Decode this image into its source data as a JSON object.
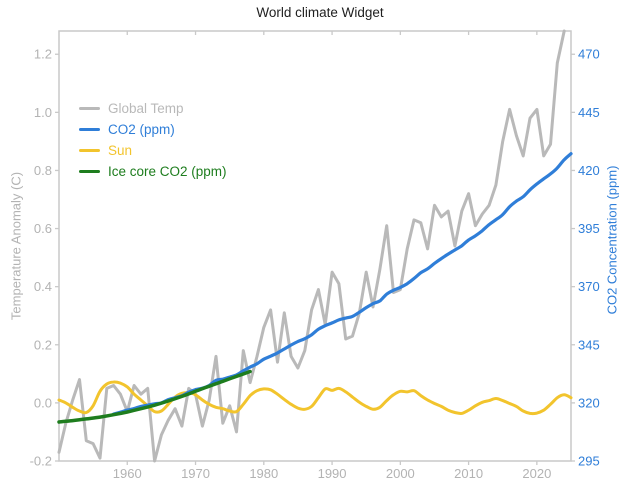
{
  "title": "World climate Widget",
  "colors": {
    "global_temp": "#b9b9b9",
    "co2": "#2f7ed8",
    "sun": "#f2c42d",
    "ice_core": "#1e7d1e",
    "axis_line": "#c9c9c9",
    "tick_label_gray": "#b3b3b3",
    "tick_label_blue": "#2f7ed8",
    "title_text": "#1f1f1f"
  },
  "legend": {
    "items": [
      {
        "label": "Global Temp",
        "color": "#b9b9b9",
        "series": "Global Temp"
      },
      {
        "label": "CO2 (ppm)",
        "color": "#2f7ed8",
        "series": "CO2 (ppm)"
      },
      {
        "label": "Sun",
        "color": "#f2c42d",
        "series": "Sun"
      },
      {
        "label": "Ice core CO2 (ppm)",
        "color": "#1e7d1e",
        "series": "Ice core CO2 (ppm)"
      }
    ]
  },
  "axes": {
    "x": {
      "ticks": [
        1960,
        1970,
        1980,
        1990,
        2000,
        2010,
        2020
      ]
    },
    "y_left": {
      "title": "Temperature Anomaly (C)",
      "ticks": [
        -0.2,
        0.0,
        0.2,
        0.4,
        0.6,
        0.8,
        1.0,
        1.2
      ]
    },
    "y_right": {
      "title": "CO2 Concentration (ppm)",
      "ticks": [
        295,
        320,
        345,
        370,
        395,
        420,
        445,
        470
      ]
    }
  },
  "chart_data": {
    "type": "line",
    "title": "World climate Widget",
    "xlabel": "",
    "ylabel_left": "Temperature Anomaly (C)",
    "ylabel_right": "CO2 Concentration (ppm)",
    "xlim": [
      1950,
      2025
    ],
    "ylim_left": [
      -0.2,
      1.28
    ],
    "ylim_right": [
      295,
      480
    ],
    "right_axis_mapping": "ppm = 320 + 125 * degC",
    "grid": false,
    "legend_position": "top-left-inside",
    "series": [
      {
        "name": "Global Temp",
        "color": "#b9b9b9",
        "axis": "left",
        "unit": "degC",
        "smooth": false,
        "width": 3,
        "points": [
          [
            1950,
            -0.17
          ],
          [
            1951,
            -0.07
          ],
          [
            1952,
            0.01
          ],
          [
            1953,
            0.08
          ],
          [
            1954,
            -0.13
          ],
          [
            1955,
            -0.14
          ],
          [
            1956,
            -0.19
          ],
          [
            1957,
            0.05
          ],
          [
            1958,
            0.06
          ],
          [
            1959,
            0.03
          ],
          [
            1960,
            -0.03
          ],
          [
            1961,
            0.06
          ],
          [
            1962,
            0.03
          ],
          [
            1963,
            0.05
          ],
          [
            1964,
            -0.2
          ],
          [
            1965,
            -0.11
          ],
          [
            1966,
            -0.06
          ],
          [
            1967,
            -0.02
          ],
          [
            1968,
            -0.08
          ],
          [
            1969,
            0.05
          ],
          [
            1970,
            0.03
          ],
          [
            1971,
            -0.08
          ],
          [
            1972,
            0.01
          ],
          [
            1973,
            0.16
          ],
          [
            1974,
            -0.07
          ],
          [
            1975,
            -0.01
          ],
          [
            1976,
            -0.1
          ],
          [
            1977,
            0.18
          ],
          [
            1978,
            0.07
          ],
          [
            1979,
            0.16
          ],
          [
            1980,
            0.26
          ],
          [
            1981,
            0.32
          ],
          [
            1982,
            0.14
          ],
          [
            1983,
            0.31
          ],
          [
            1984,
            0.16
          ],
          [
            1985,
            0.12
          ],
          [
            1986,
            0.18
          ],
          [
            1987,
            0.32
          ],
          [
            1988,
            0.39
          ],
          [
            1989,
            0.27
          ],
          [
            1990,
            0.45
          ],
          [
            1991,
            0.41
          ],
          [
            1992,
            0.22
          ],
          [
            1993,
            0.23
          ],
          [
            1994,
            0.31
          ],
          [
            1995,
            0.45
          ],
          [
            1996,
            0.33
          ],
          [
            1997,
            0.46
          ],
          [
            1998,
            0.61
          ],
          [
            1999,
            0.38
          ],
          [
            2000,
            0.39
          ],
          [
            2001,
            0.53
          ],
          [
            2002,
            0.63
          ],
          [
            2003,
            0.62
          ],
          [
            2004,
            0.53
          ],
          [
            2005,
            0.68
          ],
          [
            2006,
            0.64
          ],
          [
            2007,
            0.66
          ],
          [
            2008,
            0.54
          ],
          [
            2009,
            0.66
          ],
          [
            2010,
            0.72
          ],
          [
            2011,
            0.61
          ],
          [
            2012,
            0.65
          ],
          [
            2013,
            0.68
          ],
          [
            2014,
            0.75
          ],
          [
            2015,
            0.9
          ],
          [
            2016,
            1.01
          ],
          [
            2017,
            0.92
          ],
          [
            2018,
            0.85
          ],
          [
            2019,
            0.98
          ],
          [
            2020,
            1.01
          ],
          [
            2021,
            0.85
          ],
          [
            2022,
            0.89
          ],
          [
            2023,
            1.17
          ],
          [
            2024,
            1.28
          ]
        ]
      },
      {
        "name": "Sun",
        "color": "#f2c42d",
        "axis": "left",
        "unit": "degC",
        "smooth": true,
        "width": 3,
        "points": [
          [
            1950,
            0.01
          ],
          [
            1951,
            0.0
          ],
          [
            1952,
            -0.015
          ],
          [
            1953,
            -0.028
          ],
          [
            1954,
            -0.033
          ],
          [
            1955,
            -0.01
          ],
          [
            1956,
            0.04
          ],
          [
            1957,
            0.065
          ],
          [
            1958,
            0.072
          ],
          [
            1959,
            0.068
          ],
          [
            1960,
            0.055
          ],
          [
            1961,
            0.03
          ],
          [
            1962,
            0.01
          ],
          [
            1963,
            -0.01
          ],
          [
            1964,
            -0.03
          ],
          [
            1965,
            -0.028
          ],
          [
            1966,
            -0.005
          ],
          [
            1967,
            0.02
          ],
          [
            1968,
            0.033
          ],
          [
            1969,
            0.035
          ],
          [
            1970,
            0.028
          ],
          [
            1971,
            0.01
          ],
          [
            1972,
            -0.005
          ],
          [
            1973,
            -0.015
          ],
          [
            1974,
            -0.02
          ],
          [
            1975,
            -0.028
          ],
          [
            1976,
            -0.03
          ],
          [
            1977,
            -0.005
          ],
          [
            1978,
            0.025
          ],
          [
            1979,
            0.042
          ],
          [
            1980,
            0.048
          ],
          [
            1981,
            0.045
          ],
          [
            1982,
            0.03
          ],
          [
            1983,
            0.012
          ],
          [
            1984,
            -0.005
          ],
          [
            1985,
            -0.018
          ],
          [
            1986,
            -0.022
          ],
          [
            1987,
            -0.012
          ],
          [
            1988,
            0.018
          ],
          [
            1989,
            0.048
          ],
          [
            1990,
            0.043
          ],
          [
            1991,
            0.05
          ],
          [
            1992,
            0.038
          ],
          [
            1993,
            0.02
          ],
          [
            1994,
            0.002
          ],
          [
            1995,
            -0.012
          ],
          [
            1996,
            -0.022
          ],
          [
            1997,
            -0.015
          ],
          [
            1998,
            0.008
          ],
          [
            1999,
            0.028
          ],
          [
            2000,
            0.04
          ],
          [
            2001,
            0.038
          ],
          [
            2002,
            0.042
          ],
          [
            2003,
            0.025
          ],
          [
            2004,
            0.01
          ],
          [
            2005,
            -0.002
          ],
          [
            2006,
            -0.012
          ],
          [
            2007,
            -0.025
          ],
          [
            2008,
            -0.033
          ],
          [
            2009,
            -0.036
          ],
          [
            2010,
            -0.025
          ],
          [
            2011,
            -0.01
          ],
          [
            2012,
            0.002
          ],
          [
            2013,
            0.008
          ],
          [
            2014,
            0.015
          ],
          [
            2015,
            0.008
          ],
          [
            2016,
            -0.002
          ],
          [
            2017,
            -0.012
          ],
          [
            2018,
            -0.028
          ],
          [
            2019,
            -0.036
          ],
          [
            2020,
            -0.035
          ],
          [
            2021,
            -0.025
          ],
          [
            2022,
            -0.005
          ],
          [
            2023,
            0.018
          ],
          [
            2024,
            0.028
          ],
          [
            2025,
            0.018
          ]
        ]
      },
      {
        "name": "CO2 (ppm)",
        "color": "#2f7ed8",
        "axis": "right",
        "unit": "ppm",
        "smooth": true,
        "width": 3.2,
        "points": [
          [
            1958,
            315.2
          ],
          [
            1959,
            316.0
          ],
          [
            1960,
            316.9
          ],
          [
            1961,
            317.6
          ],
          [
            1962,
            318.5
          ],
          [
            1963,
            319.0
          ],
          [
            1964,
            319.6
          ],
          [
            1965,
            320.0
          ],
          [
            1966,
            321.4
          ],
          [
            1967,
            322.2
          ],
          [
            1968,
            323.1
          ],
          [
            1969,
            324.6
          ],
          [
            1970,
            325.7
          ],
          [
            1971,
            326.3
          ],
          [
            1972,
            327.5
          ],
          [
            1973,
            329.7
          ],
          [
            1974,
            330.2
          ],
          [
            1975,
            331.1
          ],
          [
            1976,
            332.0
          ],
          [
            1977,
            333.8
          ],
          [
            1978,
            335.4
          ],
          [
            1979,
            336.8
          ],
          [
            1980,
            338.8
          ],
          [
            1981,
            340.1
          ],
          [
            1982,
            341.5
          ],
          [
            1983,
            343.2
          ],
          [
            1984,
            344.9
          ],
          [
            1985,
            346.4
          ],
          [
            1986,
            347.6
          ],
          [
            1987,
            349.3
          ],
          [
            1988,
            351.7
          ],
          [
            1989,
            353.2
          ],
          [
            1990,
            354.4
          ],
          [
            1991,
            355.7
          ],
          [
            1992,
            356.5
          ],
          [
            1993,
            357.2
          ],
          [
            1994,
            359.0
          ],
          [
            1995,
            361.0
          ],
          [
            1996,
            362.7
          ],
          [
            1997,
            363.9
          ],
          [
            1998,
            366.8
          ],
          [
            1999,
            368.5
          ],
          [
            2000,
            369.7
          ],
          [
            2001,
            371.3
          ],
          [
            2002,
            373.5
          ],
          [
            2003,
            376.0
          ],
          [
            2004,
            377.7
          ],
          [
            2005,
            380.0
          ],
          [
            2006,
            382.1
          ],
          [
            2007,
            384.0
          ],
          [
            2008,
            385.8
          ],
          [
            2009,
            387.6
          ],
          [
            2010,
            390.1
          ],
          [
            2011,
            391.9
          ],
          [
            2012,
            394.1
          ],
          [
            2013,
            396.7
          ],
          [
            2014,
            398.8
          ],
          [
            2015,
            401.0
          ],
          [
            2016,
            404.4
          ],
          [
            2017,
            406.8
          ],
          [
            2018,
            408.7
          ],
          [
            2019,
            411.7
          ],
          [
            2020,
            414.2
          ],
          [
            2021,
            416.4
          ],
          [
            2022,
            418.5
          ],
          [
            2023,
            421.1
          ],
          [
            2024,
            424.6
          ],
          [
            2025,
            427.2
          ]
        ]
      },
      {
        "name": "Ice core CO2 (ppm)",
        "color": "#1e7d1e",
        "axis": "right",
        "unit": "ppm",
        "smooth": true,
        "width": 3.5,
        "points": [
          [
            1950,
            311.8
          ],
          [
            1952,
            312.4
          ],
          [
            1954,
            313.1
          ],
          [
            1956,
            313.9
          ],
          [
            1958,
            314.9
          ],
          [
            1960,
            316.1
          ],
          [
            1962,
            317.5
          ],
          [
            1964,
            319.0
          ],
          [
            1966,
            320.8
          ],
          [
            1968,
            322.8
          ],
          [
            1970,
            325.0
          ],
          [
            1972,
            327.2
          ],
          [
            1974,
            329.3
          ],
          [
            1976,
            331.4
          ],
          [
            1978,
            333.5
          ]
        ]
      }
    ]
  }
}
